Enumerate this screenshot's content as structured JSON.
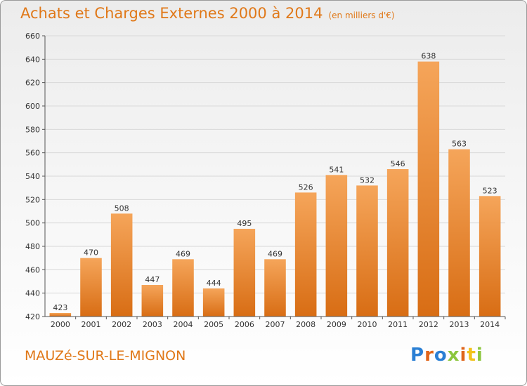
{
  "header": {
    "title": "Achats et Charges Externes 2000 à 2014",
    "unit": "(en milliers d'€)"
  },
  "footer": {
    "commune": "MAUZé-SUR-LE-MIGNON",
    "logo_text": "Proxiti",
    "logo_letters": [
      {
        "ch": "P",
        "color": "#2a7fd4"
      },
      {
        "ch": "r",
        "color": "#e0651a"
      },
      {
        "ch": "o",
        "color": "#2a7fd4"
      },
      {
        "ch": "x",
        "color": "#8cc63e"
      },
      {
        "ch": "i",
        "color": "#e0651a"
      },
      {
        "ch": "t",
        "color": "#f2c21b"
      },
      {
        "ch": "i",
        "color": "#8cc63e"
      }
    ]
  },
  "colors": {
    "accent": "#e07818",
    "bar_top": "#f5a55a",
    "bar_bottom": "#d86d14",
    "grid": "#d8d8d8"
  },
  "chart_data": {
    "type": "bar",
    "categories": [
      "2000",
      "2001",
      "2002",
      "2003",
      "2004",
      "2005",
      "2006",
      "2007",
      "2008",
      "2009",
      "2010",
      "2011",
      "2012",
      "2013",
      "2014"
    ],
    "values": [
      423,
      470,
      508,
      447,
      469,
      444,
      495,
      469,
      526,
      541,
      532,
      546,
      638,
      563,
      523
    ],
    "ylim": [
      420,
      660
    ],
    "yticks": [
      420,
      440,
      460,
      480,
      500,
      520,
      540,
      560,
      580,
      600,
      620,
      640,
      660
    ],
    "grid": true,
    "data_labels": true
  }
}
